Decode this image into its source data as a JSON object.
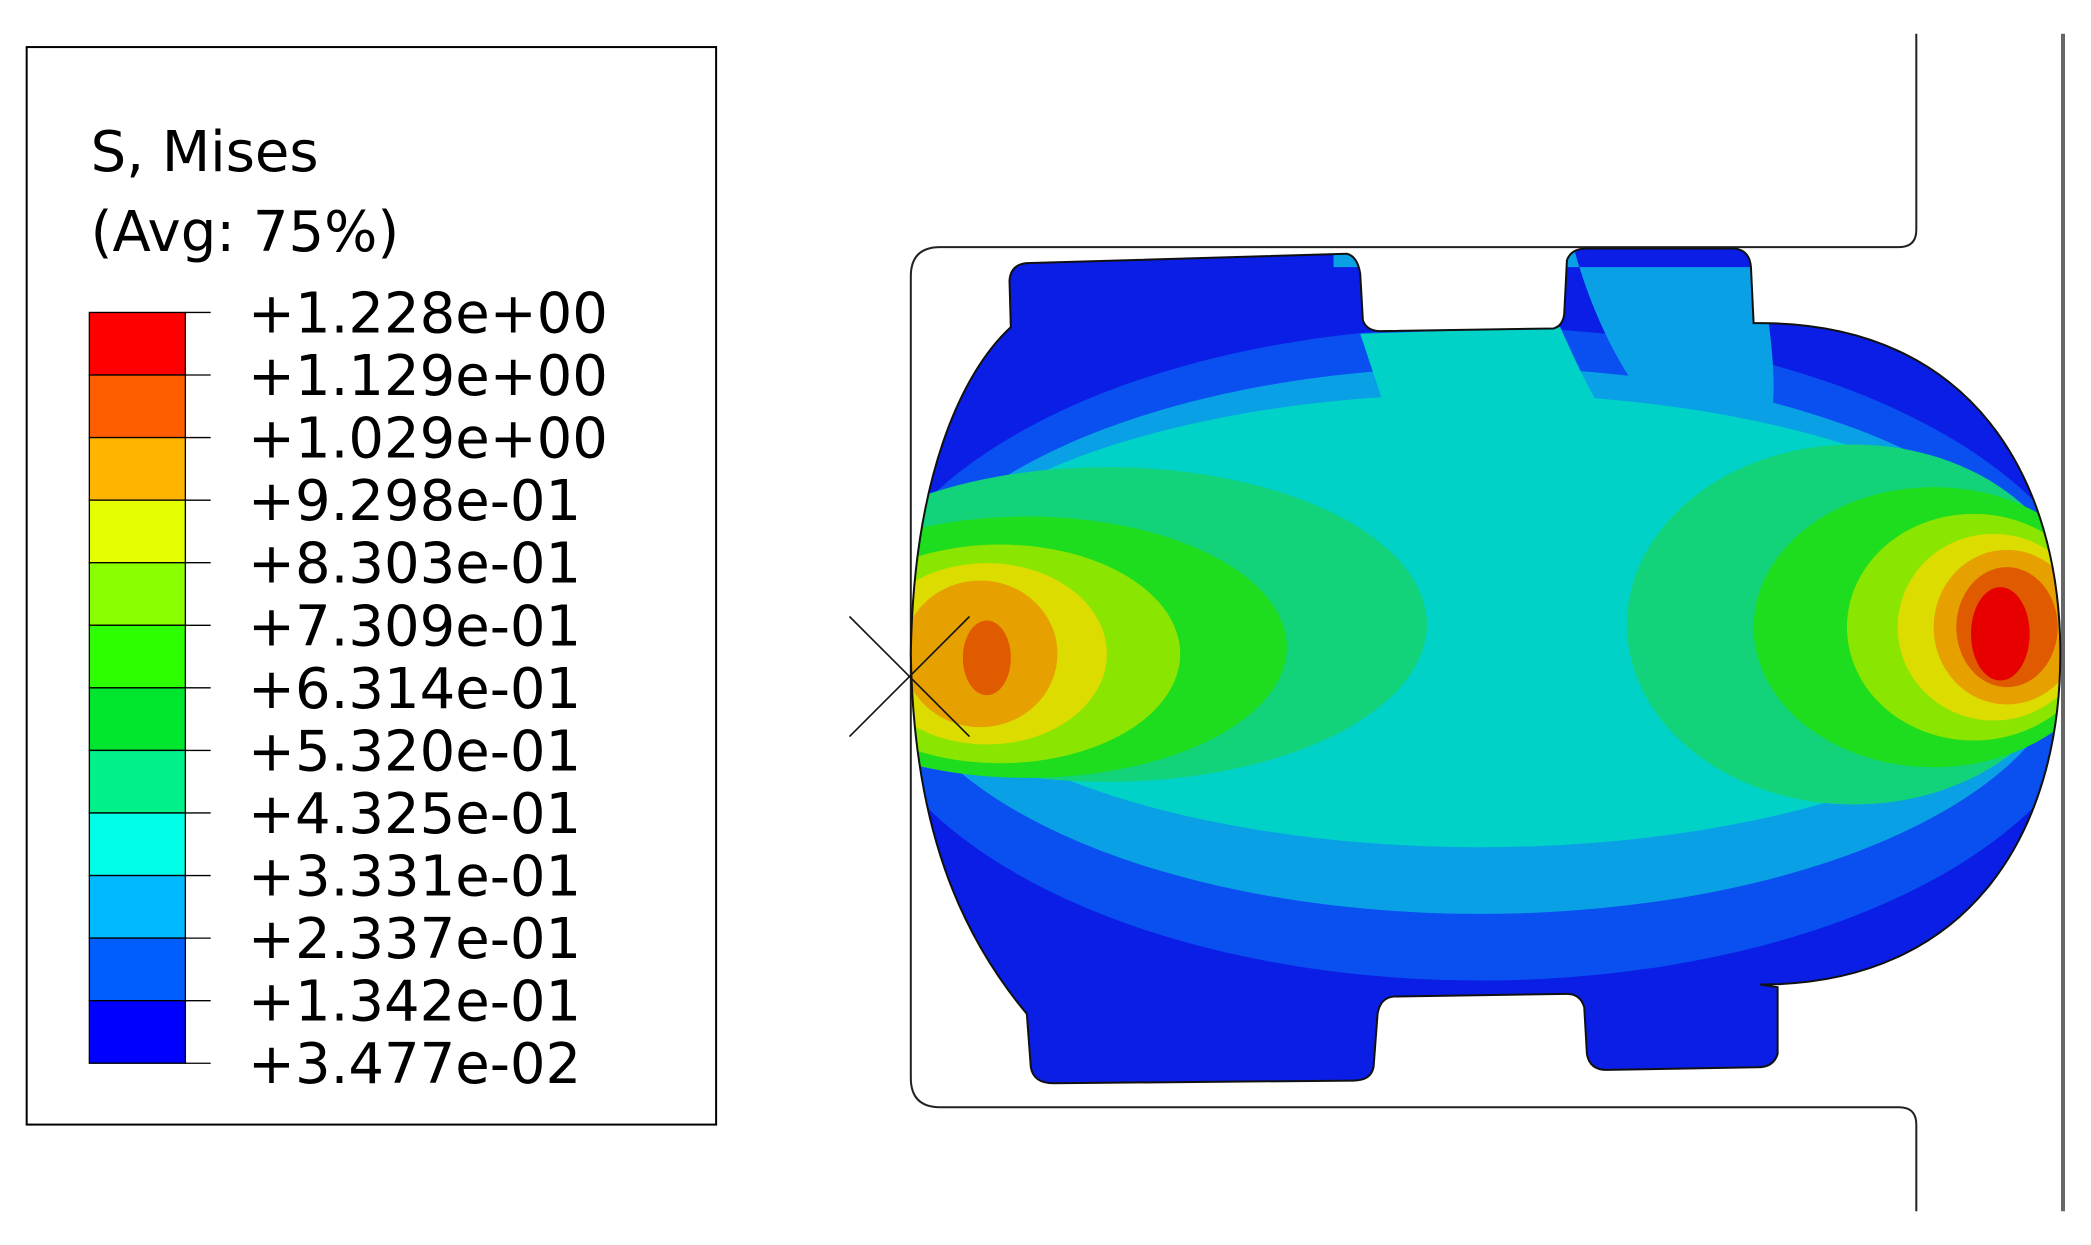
{
  "legend": {
    "title": "S, Mises",
    "subtitle": "(Avg: 75%)",
    "labels": [
      "+1.228e+00",
      "+1.129e+00",
      "+1.029e+00",
      "+9.298e-01",
      "+8.303e-01",
      "+7.309e-01",
      "+6.314e-01",
      "+5.320e-01",
      "+4.325e-01",
      "+3.331e-01",
      "+2.337e-01",
      "+1.342e-01",
      "+3.477e-02"
    ],
    "colors": [
      "#ff0000",
      "#ff5e00",
      "#ffb400",
      "#e6ff00",
      "#8aff00",
      "#2eff00",
      "#00e62e",
      "#00f08a",
      "#00ffe6",
      "#00b9ff",
      "#005eff",
      "#0000ff"
    ]
  }
}
